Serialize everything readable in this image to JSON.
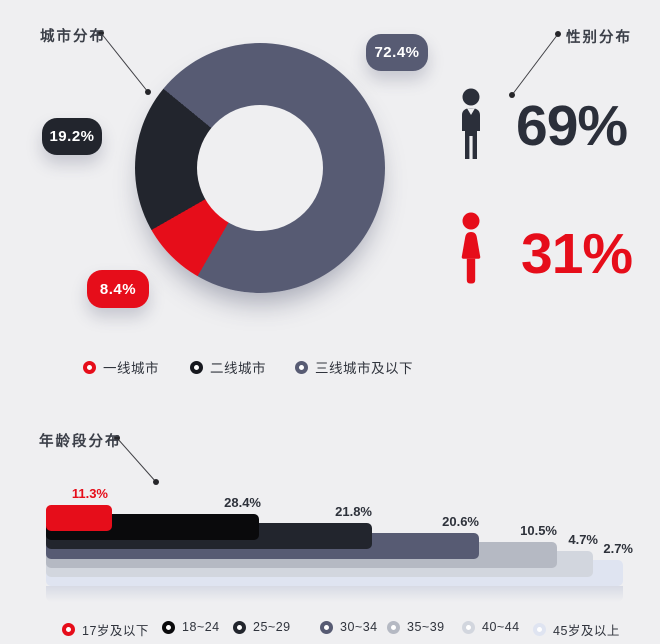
{
  "page": {
    "background": "#efeff1"
  },
  "donut_section": {
    "title": "城市分布",
    "badges": [
      {
        "text": "19.2%",
        "color": "#22252d"
      },
      {
        "text": "72.4%",
        "color": "#575b73"
      },
      {
        "text": "8.4%",
        "color": "#e60d1a"
      }
    ],
    "legend": [
      {
        "label": "一线城市",
        "color": "#e60d1a"
      },
      {
        "label": "二线城市",
        "color": "#17191f"
      },
      {
        "label": "三线城市及以下",
        "color": "#575b73"
      }
    ]
  },
  "gender_section": {
    "title": "性别分布",
    "male": {
      "value": "69%",
      "color": "#2b2f3a"
    },
    "female": {
      "value": "31%",
      "color": "#e60d1a"
    }
  },
  "age_section": {
    "title": "年龄段分布"
  },
  "chart_data": [
    {
      "type": "pie",
      "title": "城市分布",
      "donut": true,
      "labels": [
        "一线城市",
        "二线城市",
        "三线城市及以下"
      ],
      "values": [
        8.4,
        19.2,
        72.4
      ],
      "data_labels": [
        "8.4%",
        "19.2%",
        "72.4%"
      ],
      "colors": [
        "#e60d1a",
        "#22252d",
        "#575b73"
      ],
      "start_angle_deg": 210,
      "legend_position": "below"
    },
    {
      "type": "pictogram",
      "title": "性别分布",
      "items": [
        {
          "label": "male",
          "value": 69,
          "text": "69%",
          "color": "#2b2f3a"
        },
        {
          "label": "female",
          "value": 31,
          "text": "31%",
          "color": "#e60d1a"
        }
      ]
    },
    {
      "type": "bar",
      "title": "年龄段分布",
      "orientation": "horizontal-cascade",
      "categories": [
        "17岁及以下",
        "18~24",
        "25~29",
        "30~34",
        "35~39",
        "40~44",
        "45岁及以上"
      ],
      "values": [
        11.3,
        28.4,
        21.8,
        20.6,
        10.5,
        4.7,
        2.7
      ],
      "data_labels": [
        "11.3%",
        "28.4%",
        "21.8%",
        "20.6%",
        "10.5%",
        "4.7%",
        "2.7%"
      ],
      "colors": [
        "#e60d1a",
        "#0a0a0c",
        "#22252d",
        "#575b73",
        "#b5b9c3",
        "#d2d6de",
        "#dfe4f1"
      ],
      "label_colors": [
        "#e60d1a",
        "#2e323b",
        "#2e323b",
        "#2e323b",
        "#2e323b",
        "#2e323b",
        "#2e323b"
      ],
      "layout": {
        "end_fractions": [
          0.114,
          0.369,
          0.565,
          0.75,
          0.886,
          0.948,
          1.0
        ],
        "legend_position": "below"
      }
    }
  ]
}
